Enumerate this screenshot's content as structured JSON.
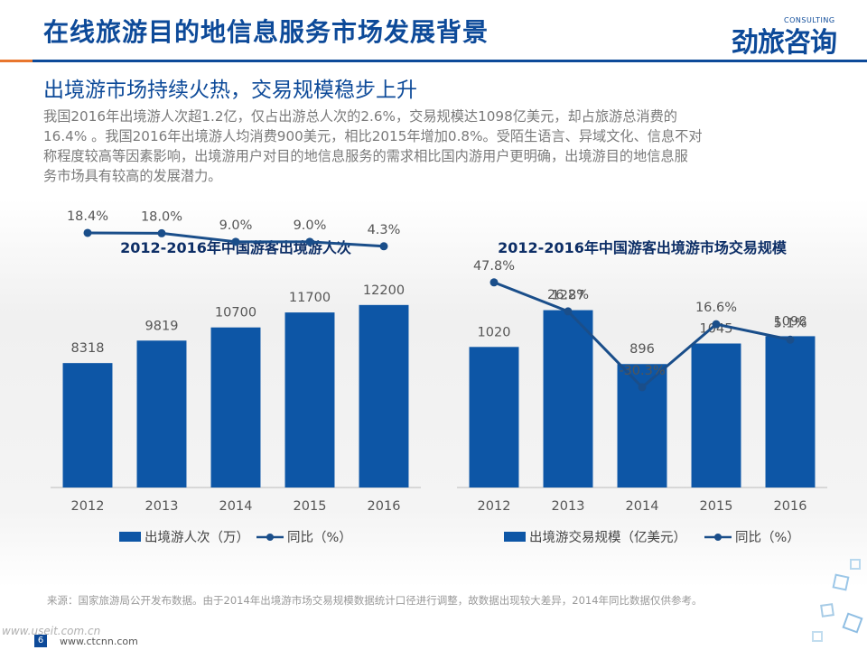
{
  "header": {
    "title": "在线旅游目的地信息服务市场发展背景",
    "logo_cn": "劲旅咨询",
    "logo_en": "CONSULTING"
  },
  "subtitle": "出境游市场持续火热，交易规模稳步上升",
  "body_lines": [
    "我国2016年出境游人次超1.2亿，仅占出游总人次的2.6%，交易规模达1098亿美元，却占旅游总消费的",
    "16.4% 。我国2016年出境游人均消费900美元，相比2015年增加0.8%。受陌生语言、异域文化、信息不对",
    "称程度较高等因素影响，出境游用户对目的地信息服务的需求相比国内游用户更明确，出境游目的地信息服",
    "务市场具有较高的发展潜力。"
  ],
  "colors": {
    "bar": "#0d56a6",
    "line": "#1a4e8a",
    "title": "#0d4a99",
    "accent": "#e8762d"
  },
  "chart_data": [
    {
      "type": "bar",
      "title": "2012-2016年中国游客出境游人次",
      "categories": [
        "2012",
        "2013",
        "2014",
        "2015",
        "2016"
      ],
      "series": [
        {
          "name": "出境游人次（万）",
          "type": "bar",
          "values": [
            8318,
            9819,
            10700,
            11700,
            12200
          ],
          "labels": [
            "8318",
            "9819",
            "10700",
            "11700",
            "12200"
          ]
        },
        {
          "name": "同比（%）",
          "type": "line",
          "values": [
            18.4,
            18.0,
            9.0,
            9.0,
            4.3
          ],
          "labels": [
            "18.4%",
            "18.0%",
            "9.0%",
            "9.0%",
            "4.3%"
          ]
        }
      ],
      "ylim": [
        0,
        17500
      ],
      "line_ylim": [
        -250,
        26
      ]
    },
    {
      "type": "bar",
      "title": "2012-2016年中国游客出境游市场交易规模",
      "categories": [
        "2012",
        "2013",
        "2014",
        "2015",
        "2016"
      ],
      "series": [
        {
          "name": "出境游交易规模（亿美元）",
          "type": "bar",
          "values": [
            1020,
            1287,
            896,
            1045,
            1098
          ],
          "labels": [
            "1020",
            "1287",
            "896",
            "1045",
            "1098"
          ]
        },
        {
          "name": "同比（%）",
          "type": "line",
          "values": [
            47.8,
            26.2,
            -30.3,
            16.6,
            5.1
          ],
          "labels": [
            "47.8%",
            "26.2%",
            "-30.3%",
            "16.6%",
            "5.1%"
          ]
        }
      ],
      "ylim": [
        0,
        1900
      ],
      "line_ylim": [
        -105,
        90
      ]
    }
  ],
  "source": "来源：国家旅游局公开发布数据。由于2014年出境游市场交易规模数据统计口径进行调整，故数据出现较大差异，2014年同比数据仅供参考。",
  "footer": {
    "url1": "www.useit.com.cn",
    "url2": "www.ctcnn.com",
    "page": "6"
  }
}
